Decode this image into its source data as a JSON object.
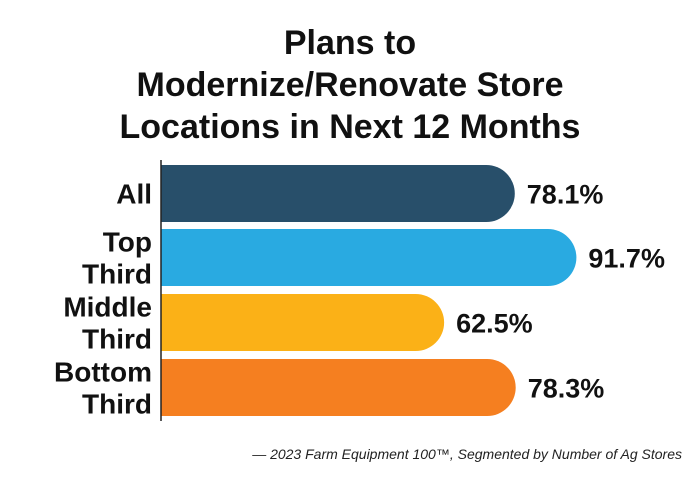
{
  "chart_data": {
    "type": "bar",
    "orientation": "horizontal",
    "title_lines": [
      "Plans to",
      "Modernize/Renovate Store",
      "Locations in Next 12 Months"
    ],
    "categories": [
      [
        "All"
      ],
      [
        "Top",
        "Third"
      ],
      [
        "Middle",
        "Third"
      ],
      [
        "Bottom",
        "Third"
      ]
    ],
    "values": [
      78.1,
      91.7,
      62.5,
      78.3
    ],
    "value_labels": [
      "78.1%",
      "91.7%",
      "62.5%",
      "78.3%"
    ],
    "colors": [
      "#284f6a",
      "#29aae1",
      "#fbb117",
      "#f57f20"
    ],
    "xlim": [
      0,
      100
    ],
    "grid": false,
    "legend": "none"
  },
  "source": "— 2023 Farm Equipment 100™, Segmented by Number of Ag Stores"
}
